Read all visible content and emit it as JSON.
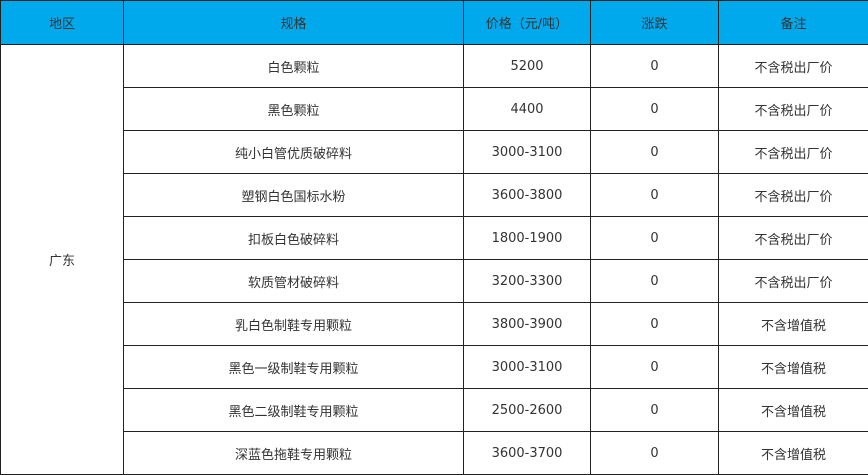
{
  "headers": [
    "地区",
    "规格",
    "价格（元/吨）",
    "涨跌",
    "备注"
  ],
  "region": "广东",
  "rows": [
    {
      "spec": "白色颗粒",
      "price": "5200",
      "change": "0",
      "note": "不含税出厂价"
    },
    {
      "spec": "黑色颗粒",
      "price": "4400",
      "change": "0",
      "note": "不含税出厂价"
    },
    {
      "spec": "纯小白管优质破碎料",
      "price": "3000-3100",
      "change": "0",
      "note": "不含税出厂价"
    },
    {
      "spec": "塑钢白色国标水粉",
      "price": "3600-3800",
      "change": "0",
      "note": "不含税出厂价"
    },
    {
      "spec": "扣板白色破碎料",
      "price": "1800-1900",
      "change": "0",
      "note": "不含税出厂价"
    },
    {
      "spec": "软质管材破碎料",
      "price": "3200-3300",
      "change": "0",
      "note": "不含税出厂价"
    },
    {
      "spec": "乳白色制鞋专用颗粒",
      "price": "3800-3900",
      "change": "0",
      "note": "不含增值税"
    },
    {
      "spec": "黑色一级制鞋专用颗粒",
      "price": "3000-3100",
      "change": "0",
      "note": "不含增值税"
    },
    {
      "spec": "黑色二级制鞋专用颗粒",
      "price": "2500-2600",
      "change": "0",
      "note": "不含增值税"
    },
    {
      "spec": "深蓝色拖鞋专用颗粒",
      "price": "3600-3700",
      "change": "0",
      "note": "不含增值税"
    }
  ]
}
